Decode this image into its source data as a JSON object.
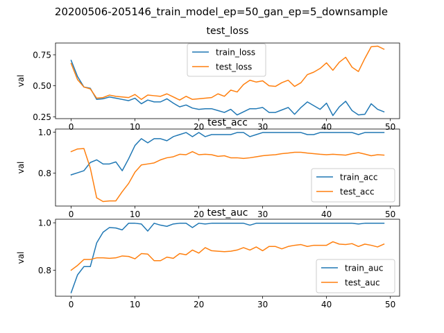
{
  "figure": {
    "suptitle": "20200506-205146_train_model_ep=50_gan_ep=5_downsample"
  },
  "chart_data": [
    {
      "type": "line",
      "title": "test_loss",
      "xlabel": "",
      "ylabel": "val",
      "xlim": [
        -2.45,
        51.45
      ],
      "ylim": [
        0.235,
        0.845
      ],
      "xticks": [
        0,
        10,
        20,
        30,
        40,
        50
      ],
      "yticks": [
        0.25,
        0.5,
        0.75
      ],
      "ytick_labels": [
        "0.25",
        "0.50",
        "0.75"
      ],
      "legend": "upper center",
      "grid": false,
      "x": [
        0,
        1,
        2,
        3,
        4,
        5,
        6,
        7,
        8,
        9,
        10,
        11,
        12,
        13,
        14,
        15,
        16,
        17,
        18,
        19,
        20,
        21,
        22,
        23,
        24,
        25,
        26,
        27,
        28,
        29,
        30,
        31,
        32,
        33,
        34,
        35,
        36,
        37,
        38,
        39,
        40,
        41,
        42,
        43,
        44,
        45,
        46,
        47,
        48,
        49
      ],
      "series": [
        {
          "name": "train_loss",
          "color": "#1f77b4",
          "values": [
            0.705,
            0.575,
            0.49,
            0.48,
            0.39,
            0.395,
            0.41,
            0.4,
            0.39,
            0.38,
            0.4,
            0.355,
            0.385,
            0.37,
            0.37,
            0.395,
            0.36,
            0.33,
            0.345,
            0.32,
            0.31,
            0.315,
            0.315,
            0.3,
            0.285,
            0.31,
            0.265,
            0.29,
            0.315,
            0.315,
            0.325,
            0.285,
            0.285,
            0.305,
            0.325,
            0.27,
            0.325,
            0.37,
            0.34,
            0.31,
            0.36,
            0.26,
            0.33,
            0.375,
            0.3,
            0.265,
            0.27,
            0.355,
            0.31,
            0.29
          ]
        },
        {
          "name": "test_loss",
          "color": "#ff7f0e",
          "values": [
            0.68,
            0.55,
            0.49,
            0.475,
            0.4,
            0.405,
            0.425,
            0.415,
            0.41,
            0.405,
            0.43,
            0.39,
            0.425,
            0.42,
            0.415,
            0.435,
            0.41,
            0.385,
            0.415,
            0.39,
            0.395,
            0.4,
            0.405,
            0.435,
            0.415,
            0.465,
            0.45,
            0.51,
            0.545,
            0.53,
            0.54,
            0.5,
            0.495,
            0.525,
            0.545,
            0.495,
            0.525,
            0.59,
            0.61,
            0.64,
            0.685,
            0.625,
            0.69,
            0.73,
            0.65,
            0.615,
            0.72,
            0.815,
            0.82,
            0.795
          ]
        }
      ]
    },
    {
      "type": "line",
      "title": "test_acc",
      "xlabel": "",
      "ylabel": "val",
      "xlim": [
        -2.45,
        51.45
      ],
      "ylim": [
        0.64,
        1.015
      ],
      "xticks": [
        0,
        10,
        20,
        30,
        40,
        50
      ],
      "yticks": [
        0.8,
        1.0
      ],
      "ytick_labels": [
        "0.8",
        "1.0"
      ],
      "legend": "lower right",
      "grid": false,
      "x": [
        0,
        1,
        2,
        3,
        4,
        5,
        6,
        7,
        8,
        9,
        10,
        11,
        12,
        13,
        14,
        15,
        16,
        17,
        18,
        19,
        20,
        21,
        22,
        23,
        24,
        25,
        26,
        27,
        28,
        29,
        30,
        31,
        32,
        33,
        34,
        35,
        36,
        37,
        38,
        39,
        40,
        41,
        42,
        43,
        44,
        45,
        46,
        47,
        48,
        49
      ],
      "series": [
        {
          "name": "train_acc",
          "color": "#1f77b4",
          "values": [
            0.792,
            0.802,
            0.812,
            0.852,
            0.865,
            0.845,
            0.845,
            0.855,
            0.812,
            0.87,
            0.935,
            0.968,
            0.948,
            0.968,
            0.968,
            0.958,
            0.978,
            0.988,
            0.998,
            0.978,
            0.998,
            0.978,
            0.988,
            0.988,
            0.988,
            0.988,
            0.998,
            0.998,
            0.978,
            0.988,
            0.998,
            0.998,
            0.998,
            0.998,
            0.998,
            0.998,
            0.998,
            0.988,
            0.988,
            0.998,
            0.998,
            0.998,
            0.998,
            0.998,
            0.998,
            0.988,
            0.998,
            0.998,
            0.998,
            0.998
          ]
        },
        {
          "name": "test_acc",
          "color": "#ff7f0e",
          "values": [
            0.905,
            0.918,
            0.92,
            0.825,
            0.68,
            0.662,
            0.665,
            0.665,
            0.71,
            0.75,
            0.805,
            0.84,
            0.845,
            0.85,
            0.865,
            0.875,
            0.88,
            0.892,
            0.89,
            0.905,
            0.89,
            0.892,
            0.89,
            0.882,
            0.885,
            0.875,
            0.875,
            0.872,
            0.875,
            0.88,
            0.885,
            0.888,
            0.89,
            0.895,
            0.898,
            0.902,
            0.902,
            0.898,
            0.895,
            0.892,
            0.89,
            0.892,
            0.89,
            0.888,
            0.895,
            0.9,
            0.893,
            0.885,
            0.89,
            0.888
          ]
        }
      ]
    },
    {
      "type": "line",
      "title": "test_auc",
      "xlabel": "",
      "ylabel": "val",
      "xlim": [
        -2.45,
        51.45
      ],
      "ylim": [
        0.69,
        1.015
      ],
      "xticks": [
        0,
        10,
        20,
        30,
        40,
        50
      ],
      "yticks": [
        0.8,
        1.0
      ],
      "ytick_labels": [
        "0.8",
        "1.0"
      ],
      "legend": "lower right",
      "grid": false,
      "x": [
        0,
        1,
        2,
        3,
        4,
        5,
        6,
        7,
        8,
        9,
        10,
        11,
        12,
        13,
        14,
        15,
        16,
        17,
        18,
        19,
        20,
        21,
        22,
        23,
        24,
        25,
        26,
        27,
        28,
        29,
        30,
        31,
        32,
        33,
        34,
        35,
        36,
        37,
        38,
        39,
        40,
        41,
        42,
        43,
        44,
        45,
        46,
        47,
        48,
        49
      ],
      "series": [
        {
          "name": "train_auc",
          "color": "#1f77b4",
          "values": [
            0.705,
            0.78,
            0.815,
            0.815,
            0.915,
            0.96,
            0.98,
            0.978,
            0.97,
            0.998,
            0.998,
            0.995,
            0.965,
            0.998,
            0.99,
            0.985,
            0.995,
            0.998,
            0.998,
            0.98,
            0.998,
            0.995,
            0.998,
            0.998,
            0.998,
            0.998,
            0.998,
            0.998,
            0.99,
            0.998,
            0.998,
            0.998,
            0.998,
            0.998,
            0.998,
            0.998,
            0.998,
            0.998,
            0.998,
            0.998,
            0.998,
            0.998,
            0.998,
            0.998,
            0.998,
            0.995,
            0.998,
            0.998,
            0.998,
            0.998
          ]
        },
        {
          "name": "test_auc",
          "color": "#ff7f0e",
          "values": [
            0.8,
            0.82,
            0.845,
            0.845,
            0.852,
            0.852,
            0.85,
            0.852,
            0.86,
            0.858,
            0.848,
            0.87,
            0.868,
            0.84,
            0.84,
            0.855,
            0.85,
            0.87,
            0.865,
            0.885,
            0.872,
            0.895,
            0.882,
            0.88,
            0.878,
            0.88,
            0.885,
            0.895,
            0.885,
            0.898,
            0.882,
            0.9,
            0.9,
            0.89,
            0.9,
            0.905,
            0.908,
            0.9,
            0.905,
            0.905,
            0.905,
            0.92,
            0.91,
            0.908,
            0.912,
            0.9,
            0.91,
            0.905,
            0.898,
            0.91
          ]
        }
      ]
    }
  ]
}
